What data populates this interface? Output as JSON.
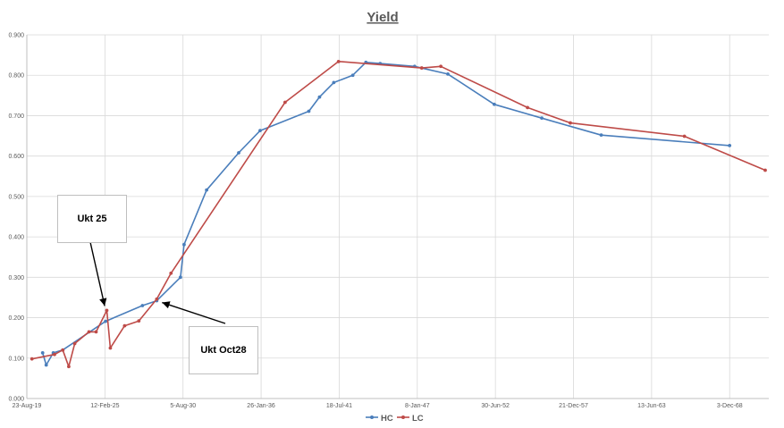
{
  "chart_data": {
    "type": "line",
    "title": "Yield",
    "xlabel": "",
    "ylabel": "",
    "ylim": [
      0,
      0.9
    ],
    "y_ticks": [
      "0.000",
      "0.100",
      "0.200",
      "0.300",
      "0.400",
      "0.500",
      "0.600",
      "0.700",
      "0.800",
      "0.900"
    ],
    "x_ticks": [
      {
        "label": "23-Aug-19",
        "date": "2019-08-23"
      },
      {
        "label": "12-Feb-25",
        "date": "2025-02-12"
      },
      {
        "label": "5-Aug-30",
        "date": "2030-08-05"
      },
      {
        "label": "26-Jan-36",
        "date": "2036-01-26"
      },
      {
        "label": "18-Jul-41",
        "date": "2041-07-18"
      },
      {
        "label": "8-Jan-47",
        "date": "2047-01-08"
      },
      {
        "label": "30-Jun-52",
        "date": "2052-06-30"
      },
      {
        "label": "21-Dec-57",
        "date": "2057-12-21"
      },
      {
        "label": "13-Jun-63",
        "date": "2063-06-13"
      },
      {
        "label": "3-Dec-68",
        "date": "2068-12-03"
      }
    ],
    "xlim": [
      "2019-08-23",
      "2071-09-01"
    ],
    "grid": true,
    "legend": "bottom",
    "series": [
      {
        "name": "HC",
        "color": "#4a7ebb",
        "points": [
          {
            "x": "2020-10-01",
            "y": 0.113
          },
          {
            "x": "2021-01-01",
            "y": 0.083
          },
          {
            "x": "2021-07-01",
            "y": 0.113
          },
          {
            "x": "2022-03-01",
            "y": 0.12
          },
          {
            "x": "2025-03-01",
            "y": 0.191
          },
          {
            "x": "2027-10-01",
            "y": 0.23
          },
          {
            "x": "2028-10-01",
            "y": 0.242
          },
          {
            "x": "2030-06-01",
            "y": 0.3
          },
          {
            "x": "2030-09-01",
            "y": 0.381
          },
          {
            "x": "2032-04-01",
            "y": 0.516
          },
          {
            "x": "2034-07-01",
            "y": 0.608
          },
          {
            "x": "2036-01-01",
            "y": 0.663
          },
          {
            "x": "2039-06-01",
            "y": 0.711
          },
          {
            "x": "2040-03-01",
            "y": 0.746
          },
          {
            "x": "2041-03-01",
            "y": 0.782
          },
          {
            "x": "2042-07-01",
            "y": 0.8
          },
          {
            "x": "2043-06-01",
            "y": 0.832
          },
          {
            "x": "2044-06-01",
            "y": 0.829
          },
          {
            "x": "2046-11-01",
            "y": 0.822
          },
          {
            "x": "2049-03-01",
            "y": 0.803
          },
          {
            "x": "2052-06-01",
            "y": 0.728
          },
          {
            "x": "2055-10-01",
            "y": 0.694
          },
          {
            "x": "2059-12-01",
            "y": 0.652
          },
          {
            "x": "2068-12-01",
            "y": 0.626
          }
        ]
      },
      {
        "name": "LC",
        "color": "#be4b48",
        "points": [
          {
            "x": "2020-01-01",
            "y": 0.098
          },
          {
            "x": "2021-08-01",
            "y": 0.109
          },
          {
            "x": "2022-03-01",
            "y": 0.12
          },
          {
            "x": "2022-08-01",
            "y": 0.079
          },
          {
            "x": "2023-01-01",
            "y": 0.136
          },
          {
            "x": "2024-01-01",
            "y": 0.165
          },
          {
            "x": "2024-07-01",
            "y": 0.165
          },
          {
            "x": "2025-04-01",
            "y": 0.218
          },
          {
            "x": "2025-07-01",
            "y": 0.125
          },
          {
            "x": "2026-07-01",
            "y": 0.18
          },
          {
            "x": "2027-07-01",
            "y": 0.192
          },
          {
            "x": "2028-10-01",
            "y": 0.246
          },
          {
            "x": "2029-10-01",
            "y": 0.31
          },
          {
            "x": "2037-10-01",
            "y": 0.733
          },
          {
            "x": "2041-07-01",
            "y": 0.834
          },
          {
            "x": "2047-05-01",
            "y": 0.818
          },
          {
            "x": "2048-09-01",
            "y": 0.822
          },
          {
            "x": "2054-10-01",
            "y": 0.72
          },
          {
            "x": "2057-10-01",
            "y": 0.682
          },
          {
            "x": "2065-10-01",
            "y": 0.649
          },
          {
            "x": "2071-06-01",
            "y": 0.565
          }
        ]
      }
    ],
    "annotations": [
      {
        "text": "Ukt 25",
        "target": {
          "x": "2025-03-01",
          "y": 0.218
        }
      },
      {
        "text": "Ukt Oct28",
        "target": {
          "x": "2028-10-01",
          "y": 0.242
        }
      }
    ]
  }
}
